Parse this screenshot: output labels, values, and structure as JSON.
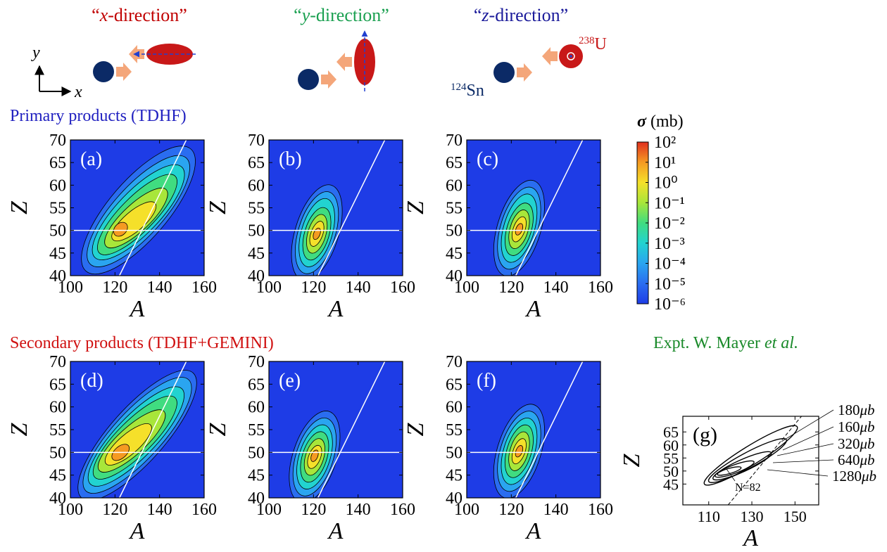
{
  "orientations": [
    {
      "open": "“",
      "axis": "x",
      "rest": "-direction”",
      "color": "#c00000"
    },
    {
      "open": "“",
      "axis": "y",
      "rest": "-direction”",
      "color": "#1aa050"
    },
    {
      "open": "“",
      "axis": "z",
      "rest": "-direction”",
      "color": "#1a1a9a"
    }
  ],
  "frame_axes": {
    "vertical": "y",
    "horizontal": "x"
  },
  "nuclei": {
    "target": {
      "mass": "238",
      "symbol": "U"
    },
    "projectile": {
      "mass": "124",
      "symbol": "Sn"
    }
  },
  "section_titles": {
    "primary": "Primary products (TDHF)",
    "secondary": "Secondary products (TDHF+GEMINI)"
  },
  "expt_title": {
    "text": "Expt. W. Mayer ",
    "italic": "et al."
  },
  "colorbar": {
    "symbol": "σ",
    "unit": " (mb)",
    "colors": [
      "#1e3ce6",
      "#2a6df0",
      "#2aa5f0",
      "#22d3d0",
      "#40dc80",
      "#a8e63a",
      "#f5e02a",
      "#f59a22",
      "#e03020"
    ],
    "ticks": [
      {
        "value": 100,
        "label": "10²"
      },
      {
        "value": 10,
        "label": "10¹"
      },
      {
        "value": 1,
        "label": "10⁰"
      },
      {
        "value": 0.1,
        "label": "10⁻¹"
      },
      {
        "value": 0.01,
        "label": "10⁻²"
      },
      {
        "value": 0.001,
        "label": "10⁻³"
      },
      {
        "value": 0.0001,
        "label": "10⁻⁴"
      },
      {
        "value": 1e-05,
        "label": "10⁻⁵"
      },
      {
        "value": 1e-06,
        "label": "10⁻⁶"
      }
    ]
  },
  "chart_data": [
    {
      "type": "contour",
      "label": "(a)",
      "xlabel": "A",
      "ylabel": "Z",
      "xlim": [
        100,
        160
      ],
      "ylim": [
        40,
        70
      ],
      "xticks": [
        100,
        120,
        140,
        160
      ],
      "yticks": [
        40,
        45,
        50,
        55,
        60,
        65,
        70
      ],
      "z_line": 50,
      "n_line": 82,
      "background": "#1e3ce6",
      "contours": [
        {
          "level": 1e-05,
          "from": [
            107,
            41
          ],
          "to": [
            154,
            68
          ],
          "width": 6.5
        },
        {
          "level": 0.0001,
          "from": [
            109,
            42.5
          ],
          "to": [
            152,
            66
          ],
          "width": 5.5
        },
        {
          "level": 0.001,
          "from": [
            111,
            44
          ],
          "to": [
            150,
            64
          ],
          "width": 4.7
        },
        {
          "level": 0.01,
          "from": [
            113,
            45
          ],
          "to": [
            147,
            62
          ],
          "width": 3.8
        },
        {
          "level": 0.1,
          "from": [
            116,
            46.5
          ],
          "to": [
            143,
            59
          ],
          "width": 3
        },
        {
          "level": 1,
          "from": [
            119,
            48
          ],
          "to": [
            138,
            56
          ],
          "width": 2.2
        },
        {
          "level": 10,
          "from": [
            120,
            49
          ],
          "to": [
            125,
            51.5
          ],
          "width": 1.3
        }
      ]
    },
    {
      "type": "contour",
      "label": "(b)",
      "xlabel": "A",
      "ylabel": "Z",
      "xlim": [
        100,
        160
      ],
      "ylim": [
        40,
        70
      ],
      "xticks": [
        100,
        120,
        140,
        160
      ],
      "yticks": [
        40,
        45,
        50,
        55,
        60,
        65,
        70
      ],
      "z_line": 50,
      "n_line": 82,
      "background": "#1e3ce6",
      "contours": [
        {
          "level": 1e-05,
          "from": [
            115,
            39
          ],
          "to": [
            128,
            60
          ],
          "width": 4.8
        },
        {
          "level": 0.0001,
          "from": [
            116,
            40.5
          ],
          "to": [
            127,
            58.5
          ],
          "width": 4.1
        },
        {
          "level": 0.001,
          "from": [
            117,
            42
          ],
          "to": [
            126,
            57
          ],
          "width": 3.4
        },
        {
          "level": 0.01,
          "from": [
            118,
            43.5
          ],
          "to": [
            125,
            55
          ],
          "width": 2.7
        },
        {
          "level": 0.1,
          "from": [
            119,
            45
          ],
          "to": [
            124,
            53.5
          ],
          "width": 2
        },
        {
          "level": 1,
          "from": [
            119.5,
            46.5
          ],
          "to": [
            123.5,
            52
          ],
          "width": 1.3
        },
        {
          "level": 10,
          "from": [
            120.5,
            48
          ],
          "to": [
            122.5,
            50.5
          ],
          "width": 0.7
        }
      ]
    },
    {
      "type": "contour",
      "label": "(c)",
      "xlabel": "A",
      "ylabel": "Z",
      "xlim": [
        100,
        160
      ],
      "ylim": [
        40,
        70
      ],
      "xticks": [
        100,
        120,
        140,
        160
      ],
      "yticks": [
        40,
        45,
        50,
        55,
        60,
        65,
        70
      ],
      "z_line": 50,
      "n_line": 82,
      "background": "#1e3ce6",
      "contours": [
        {
          "level": 1e-05,
          "from": [
            117,
            40
          ],
          "to": [
            130,
            61
          ],
          "width": 4.8
        },
        {
          "level": 0.0001,
          "from": [
            118,
            41.5
          ],
          "to": [
            129,
            59.5
          ],
          "width": 4.1
        },
        {
          "level": 0.001,
          "from": [
            119,
            43
          ],
          "to": [
            128,
            58
          ],
          "width": 3.4
        },
        {
          "level": 0.01,
          "from": [
            120,
            44.5
          ],
          "to": [
            127,
            56
          ],
          "width": 2.7
        },
        {
          "level": 0.1,
          "from": [
            121,
            46
          ],
          "to": [
            126,
            54.5
          ],
          "width": 2
        },
        {
          "level": 1,
          "from": [
            121.5,
            47.5
          ],
          "to": [
            125.5,
            53
          ],
          "width": 1.3
        },
        {
          "level": 10,
          "from": [
            122.5,
            49
          ],
          "to": [
            124.5,
            51.5
          ],
          "width": 0.7
        }
      ]
    },
    {
      "type": "contour",
      "label": "(d)",
      "xlabel": "A",
      "ylabel": "Z",
      "xlim": [
        100,
        160
      ],
      "ylim": [
        40,
        70
      ],
      "xticks": [
        100,
        120,
        140,
        160
      ],
      "yticks": [
        40,
        45,
        50,
        55,
        60,
        65,
        70
      ],
      "z_line": 50,
      "n_line": 82,
      "background": "#1e3ce6",
      "contours": [
        {
          "level": 1e-05,
          "from": [
            105,
            40
          ],
          "to": [
            155,
            67.5
          ],
          "width": 6
        },
        {
          "level": 0.0001,
          "from": [
            107,
            41.5
          ],
          "to": [
            153,
            66
          ],
          "width": 5.3
        },
        {
          "level": 0.001,
          "from": [
            109,
            43
          ],
          "to": [
            150,
            64
          ],
          "width": 4.5
        },
        {
          "level": 0.01,
          "from": [
            111,
            44.5
          ],
          "to": [
            147,
            62
          ],
          "width": 3.8
        },
        {
          "level": 0.1,
          "from": [
            113,
            46
          ],
          "to": [
            142,
            59
          ],
          "width": 3
        },
        {
          "level": 1,
          "from": [
            116,
            47.5
          ],
          "to": [
            136,
            56
          ],
          "width": 2.2
        },
        {
          "level": 10,
          "from": [
            119,
            48.5
          ],
          "to": [
            126,
            51.5
          ],
          "width": 1.3
        }
      ]
    },
    {
      "type": "contour",
      "label": "(e)",
      "xlabel": "A",
      "ylabel": "Z",
      "xlim": [
        100,
        160
      ],
      "ylim": [
        40,
        70
      ],
      "xticks": [
        100,
        120,
        140,
        160
      ],
      "yticks": [
        40,
        45,
        50,
        55,
        60,
        65,
        70
      ],
      "z_line": 50,
      "n_line": 82,
      "background": "#1e3ce6",
      "contours": [
        {
          "level": 1e-05,
          "from": [
            114,
            39
          ],
          "to": [
            127,
            59
          ],
          "width": 4.8
        },
        {
          "level": 0.0001,
          "from": [
            115,
            40.5
          ],
          "to": [
            126,
            57.5
          ],
          "width": 4.1
        },
        {
          "level": 0.001,
          "from": [
            116,
            42
          ],
          "to": [
            125,
            56
          ],
          "width": 3.4
        },
        {
          "level": 0.01,
          "from": [
            117,
            43.5
          ],
          "to": [
            124,
            54.5
          ],
          "width": 2.7
        },
        {
          "level": 0.1,
          "from": [
            118,
            45
          ],
          "to": [
            123,
            53
          ],
          "width": 2
        },
        {
          "level": 1,
          "from": [
            118.5,
            46.5
          ],
          "to": [
            122.5,
            51.5
          ],
          "width": 1.3
        },
        {
          "level": 10,
          "from": [
            119.5,
            48
          ],
          "to": [
            121.5,
            50.5
          ],
          "width": 0.7
        }
      ]
    },
    {
      "type": "contour",
      "label": "(f)",
      "xlabel": "A",
      "ylabel": "Z",
      "xlim": [
        100,
        160
      ],
      "ylim": [
        40,
        70
      ],
      "xticks": [
        100,
        120,
        140,
        160
      ],
      "yticks": [
        40,
        45,
        50,
        55,
        60,
        65,
        70
      ],
      "z_line": 50,
      "n_line": 82,
      "background": "#1e3ce6",
      "contours": [
        {
          "level": 1e-05,
          "from": [
            117,
            40
          ],
          "to": [
            130,
            60.5
          ],
          "width": 4.8
        },
        {
          "level": 0.0001,
          "from": [
            118,
            41.5
          ],
          "to": [
            129,
            59
          ],
          "width": 4.1
        },
        {
          "level": 0.001,
          "from": [
            119,
            43
          ],
          "to": [
            128,
            57.5
          ],
          "width": 3.4
        },
        {
          "level": 0.01,
          "from": [
            120,
            44.5
          ],
          "to": [
            127,
            56
          ],
          "width": 2.7
        },
        {
          "level": 0.1,
          "from": [
            121,
            46
          ],
          "to": [
            126,
            54.5
          ],
          "width": 2
        },
        {
          "level": 1,
          "from": [
            121.5,
            47.5
          ],
          "to": [
            125.5,
            53
          ],
          "width": 1.3
        },
        {
          "level": 10,
          "from": [
            122.5,
            49
          ],
          "to": [
            124.5,
            51.5
          ],
          "width": 0.7
        }
      ]
    },
    {
      "type": "contour",
      "label": "(g)",
      "xlabel": "A",
      "ylabel": "Z",
      "xlim": [
        98,
        161
      ],
      "ylim": [
        37,
        71
      ],
      "xticks": [
        110,
        130,
        150
      ],
      "yticks": [
        45,
        50,
        55,
        60,
        65
      ],
      "n_line": 82,
      "annotation": "N=82",
      "contour_unit": "μb",
      "contours": [
        {
          "level": 160,
          "from": [
            108,
            45
          ],
          "to": [
            151,
            67
          ],
          "width": 3.6
        },
        {
          "level": 180,
          "from": [
            110,
            46
          ],
          "to": [
            146,
            62
          ],
          "width": 3
        },
        {
          "level": 320,
          "from": [
            112,
            47
          ],
          "to": [
            139,
            57
          ],
          "width": 2.3
        },
        {
          "level": 640,
          "from": [
            113,
            48
          ],
          "to": [
            131,
            53.5
          ],
          "width": 1.6
        },
        {
          "level": 1280,
          "from": [
            114,
            48.7
          ],
          "to": [
            125,
            51.3
          ],
          "width": 1
        }
      ],
      "level_labels": [
        180,
        160,
        320,
        640,
        1280
      ]
    }
  ]
}
